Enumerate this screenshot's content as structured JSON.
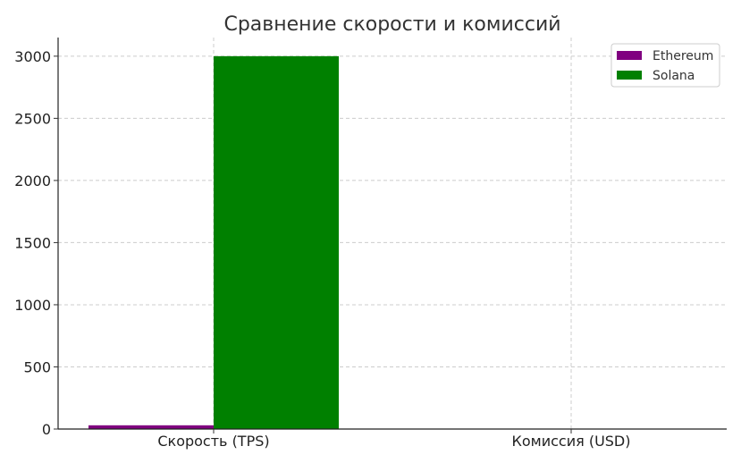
{
  "chart_data": {
    "type": "bar",
    "title": "Сравнение скорости и комиссий",
    "xlabel": "",
    "ylabel": "",
    "categories": [
      "Скорость (TPS)",
      "Комиссия (USD)"
    ],
    "series": [
      {
        "name": "Ethereum",
        "values": [
          30,
          2.5
        ],
        "color": "#800080"
      },
      {
        "name": "Solana",
        "values": [
          3000,
          0.00025
        ],
        "color": "#008000"
      }
    ],
    "ylim": [
      0,
      3150
    ],
    "yticks": [
      0,
      500,
      1000,
      1500,
      2000,
      2500,
      3000
    ],
    "grid": true,
    "legend_position": "top-right"
  }
}
